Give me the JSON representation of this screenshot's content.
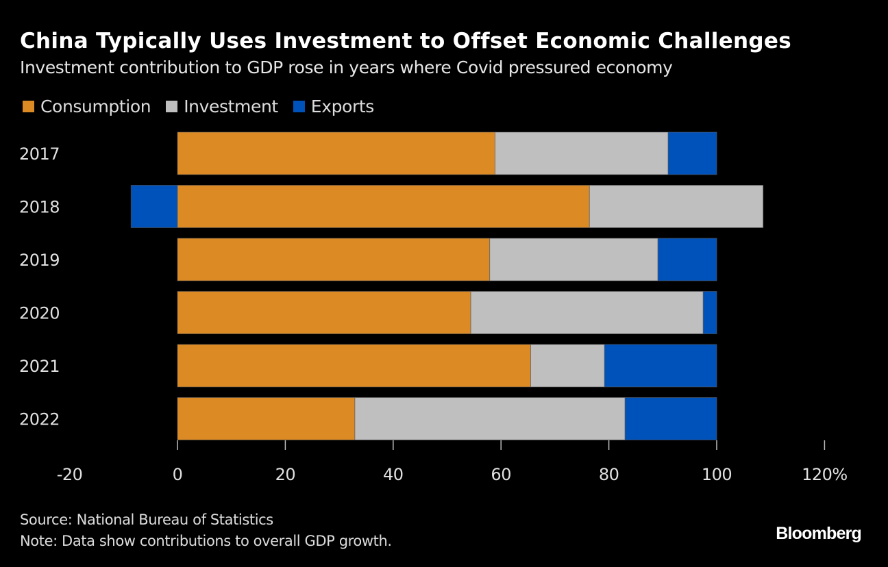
{
  "header": {
    "title": "China Typically Uses Investment to Offset Economic Challenges",
    "subtitle": "Investment contribution to GDP rose in years where Covid pressured economy"
  },
  "footer": {
    "source": "Source: National Bureau of Statistics",
    "note": "Note: Data show contributions to overall GDP growth.",
    "brand": "Bloomberg"
  },
  "chart_data": {
    "type": "bar",
    "orientation": "horizontal",
    "stacked": true,
    "title": "China Typically Uses Investment to Offset Economic Challenges",
    "subtitle": "Investment contribution to GDP rose in years where Covid pressured economy",
    "xlabel": "",
    "ylabel": "",
    "categories": [
      "2017",
      "2018",
      "2019",
      "2020",
      "2021",
      "2022"
    ],
    "series": [
      {
        "name": "Consumption",
        "color": "#dc8a24",
        "values": [
          58.9,
          76.4,
          57.9,
          54.4,
          65.5,
          32.9
        ]
      },
      {
        "name": "Investment",
        "color": "#bfbfbf",
        "values": [
          32.1,
          32.2,
          31.2,
          43.1,
          13.7,
          50.1
        ]
      },
      {
        "name": "Exports",
        "color": "#0052bb",
        "values": [
          9.0,
          -8.6,
          10.9,
          2.5,
          20.8,
          17.0
        ]
      }
    ],
    "xlim": [
      -20,
      120
    ],
    "xticks": [
      -20,
      0,
      20,
      40,
      60,
      80,
      100,
      120
    ],
    "xtick_labels": [
      "-20",
      "0",
      "20",
      "40",
      "60",
      "80",
      "100",
      "120%"
    ],
    "grid": false,
    "legend": "top-left"
  }
}
